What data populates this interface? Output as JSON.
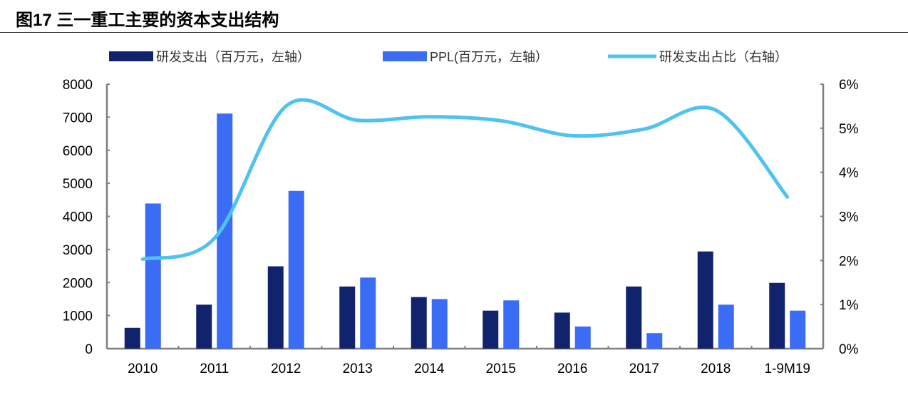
{
  "figure_title": "图17 三一重工主要的资本支出结构",
  "chart_data": {
    "type": "bar+line",
    "title": "",
    "categories": [
      "2010",
      "2011",
      "2012",
      "2013",
      "2014",
      "2015",
      "2016",
      "2017",
      "2018",
      "1-9M19"
    ],
    "series": [
      {
        "name": "研发支出（百万元，左轴）",
        "type": "bar",
        "axis": "left",
        "color": "#12236e",
        "values": [
          630,
          1330,
          2490,
          1880,
          1560,
          1150,
          1090,
          1880,
          2940,
          1990
        ]
      },
      {
        "name": "PPL(百万元，左轴）",
        "type": "bar",
        "axis": "left",
        "color": "#3b6cf6",
        "values": [
          4390,
          7110,
          4770,
          2150,
          1500,
          1460,
          670,
          470,
          1330,
          1150
        ]
      },
      {
        "name": "研发支出占比（右轴）",
        "type": "line",
        "axis": "right",
        "color": "#4fc3f0",
        "values": [
          2.03,
          2.5,
          5.5,
          5.18,
          5.26,
          5.17,
          4.83,
          4.98,
          5.41,
          3.44
        ]
      }
    ],
    "y_left": {
      "lim": [
        0,
        8000
      ],
      "ticks": [
        "0",
        "1000",
        "2000",
        "3000",
        "4000",
        "5000",
        "6000",
        "7000",
        "8000"
      ]
    },
    "y_right": {
      "lim": [
        0,
        6
      ],
      "ticks": [
        "0%",
        "1%",
        "2%",
        "3%",
        "4%",
        "5%",
        "6%"
      ]
    },
    "grid": false,
    "legend": "top"
  }
}
